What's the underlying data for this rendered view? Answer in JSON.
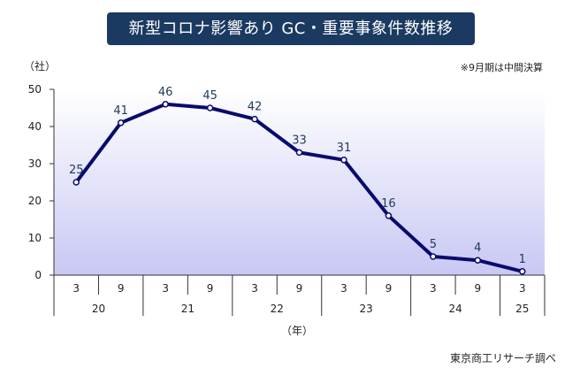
{
  "chart_data": {
    "type": "line",
    "title": "新型コロナ影響あり GC・重要事象件数推移",
    "ylabel": "（社）",
    "xlabel": "（年）",
    "note": "※9月期は中間決算",
    "source": "東京商工リサーチ調べ",
    "ylim": [
      0,
      50
    ],
    "yticks": [
      "0",
      "10",
      "20",
      "30",
      "40",
      "50"
    ],
    "months": [
      "3",
      "9",
      "3",
      "9",
      "3",
      "9",
      "3",
      "9",
      "3",
      "9",
      "3"
    ],
    "years": [
      {
        "label": "20",
        "span": 2
      },
      {
        "label": "21",
        "span": 2
      },
      {
        "label": "22",
        "span": 2
      },
      {
        "label": "23",
        "span": 2
      },
      {
        "label": "24",
        "span": 2
      },
      {
        "label": "25",
        "span": 1
      }
    ],
    "series": [
      {
        "values": [
          25,
          41,
          46,
          45,
          42,
          33,
          31,
          16,
          5,
          4,
          1
        ]
      }
    ],
    "colors": {
      "line": "#0a0a6e",
      "title_bg": "#1b3a61",
      "fill_top": "#ffffff",
      "fill_bottom": "#c8c8f4"
    }
  }
}
